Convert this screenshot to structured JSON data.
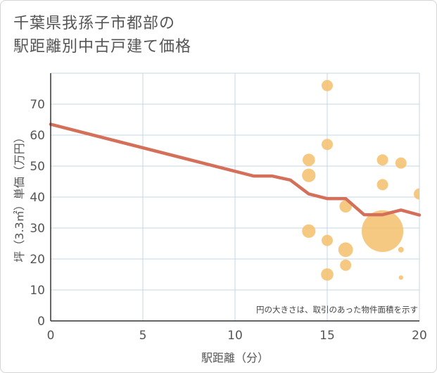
{
  "title": {
    "line1": "千葉県我孫子市都部の",
    "line2": "駅距離別中古戸建て価格"
  },
  "colors": {
    "line": "#d4705a",
    "bubble": "#f3bf6b",
    "grid": "#c5d5e5",
    "axis_text": "#555555"
  },
  "chart_data": {
    "type": "scatter",
    "title": "千葉県我孫子市都部の駅距離別中古戸建て価格",
    "xlabel": "駅距離（分）",
    "ylabel": "坪（3.3㎡）単価（万円）",
    "xlim": [
      0,
      20
    ],
    "ylim": [
      0,
      80
    ],
    "xticks": [
      0,
      5,
      10,
      15,
      20
    ],
    "yticks": [
      0,
      10,
      20,
      30,
      40,
      50,
      60,
      70
    ],
    "grid": true,
    "note": "円の大きさは、取引のあった物件面積を示す",
    "trend_line": {
      "name": "trend",
      "x": [
        0,
        11,
        12,
        13,
        14,
        15,
        16,
        17,
        18,
        19,
        20
      ],
      "y": [
        63.5,
        46.8,
        46.8,
        45.5,
        41,
        39.5,
        39.5,
        34.3,
        34.3,
        35.8,
        34.2
      ]
    },
    "bubbles": [
      {
        "x": 15,
        "y": 76,
        "size": 1.0
      },
      {
        "x": 15,
        "y": 57,
        "size": 1.0
      },
      {
        "x": 14,
        "y": 52,
        "size": 1.1
      },
      {
        "x": 14,
        "y": 47,
        "size": 1.2
      },
      {
        "x": 18,
        "y": 52,
        "size": 1.0
      },
      {
        "x": 19,
        "y": 51,
        "size": 1.0
      },
      {
        "x": 18,
        "y": 44,
        "size": 1.0
      },
      {
        "x": 20,
        "y": 41,
        "size": 1.0
      },
      {
        "x": 16,
        "y": 37,
        "size": 1.1
      },
      {
        "x": 14,
        "y": 29,
        "size": 1.2
      },
      {
        "x": 18,
        "y": 29,
        "size": 3.7
      },
      {
        "x": 15,
        "y": 26,
        "size": 1.0
      },
      {
        "x": 16,
        "y": 23,
        "size": 1.3
      },
      {
        "x": 19,
        "y": 23,
        "size": 0.5
      },
      {
        "x": 16,
        "y": 18,
        "size": 1.0
      },
      {
        "x": 15,
        "y": 15,
        "size": 1.1
      },
      {
        "x": 19,
        "y": 14,
        "size": 0.4
      }
    ]
  }
}
